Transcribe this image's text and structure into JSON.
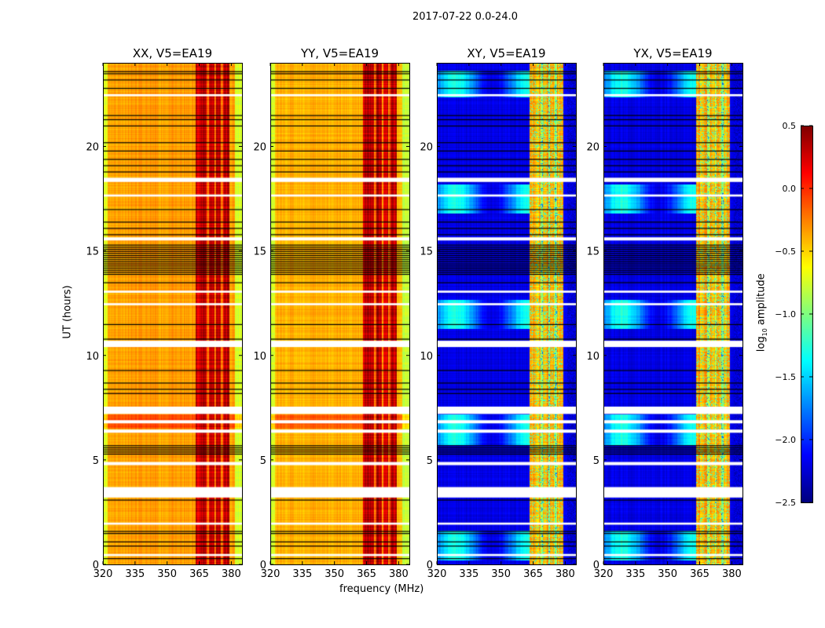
{
  "chart_data": {
    "type": "heatmap",
    "suptitle": "2017-07-22 0.0-24.0",
    "xlabel": "frequency (MHz)",
    "ylabel": "UT (hours)",
    "xlim": [
      320,
      385
    ],
    "ylim": [
      0,
      24
    ],
    "xticks": [
      "320",
      "335",
      "350",
      "365",
      "380"
    ],
    "xtick_values": [
      320,
      335,
      350,
      365,
      380
    ],
    "yticks": [
      "0",
      "5",
      "10",
      "15",
      "20"
    ],
    "ytick_values": [
      0,
      5,
      10,
      15,
      20
    ],
    "panels": [
      {
        "title": "XX, V5=EA19",
        "base": -0.35,
        "band": 0.3,
        "cross": false
      },
      {
        "title": "YY, V5=EA19",
        "base": -0.4,
        "band": 0.3,
        "cross": false
      },
      {
        "title": "XY, V5=EA19",
        "base": -2.2,
        "band": -0.4,
        "cross": true
      },
      {
        "title": "YX, V5=EA19",
        "base": -2.2,
        "band": -0.4,
        "cross": true
      }
    ],
    "band_mhz": [
      363,
      379
    ],
    "flagged_hours": [
      [
        3.2,
        3.7
      ],
      [
        7.2,
        7.55
      ],
      [
        10.4,
        10.7
      ],
      [
        6.3,
        6.45
      ],
      [
        6.75,
        6.9
      ],
      [
        4.75,
        4.9
      ],
      [
        13.0,
        13.1
      ],
      [
        12.4,
        12.5
      ],
      [
        17.6,
        17.7
      ],
      [
        18.3,
        18.5
      ],
      [
        15.5,
        15.65
      ],
      [
        22.4,
        22.5
      ],
      [
        1.9,
        2.0
      ],
      [
        0.4,
        0.5
      ]
    ],
    "black_hours": [
      0.3,
      0.9,
      1.1,
      1.5,
      1.6,
      3.1,
      5.3,
      5.4,
      5.5,
      5.6,
      5.7,
      8.2,
      8.4,
      8.7,
      9.3,
      10.8,
      11.5,
      13.5,
      13.9,
      14.0,
      14.1,
      14.2,
      14.3,
      14.4,
      14.5,
      14.6,
      14.7,
      14.8,
      14.9,
      15.0,
      15.1,
      15.2,
      15.3,
      15.8,
      16.1,
      16.4,
      17.0,
      18.8,
      19.1,
      19.4,
      19.8,
      20.2,
      21.0,
      21.3,
      21.5,
      22.8,
      23.2,
      23.5,
      23.6
    ],
    "colorbar": {
      "label": "log10 amplitude",
      "label_main": "log",
      "label_sub": "10",
      "label_rest": " amplitude",
      "range": [
        -2.5,
        0.5
      ],
      "ticks": [
        "0.5",
        "0.0",
        "−0.5",
        "−1.0",
        "−1.5",
        "−2.0",
        "−2.5"
      ],
      "tick_values": [
        0.5,
        0.0,
        -0.5,
        -1.0,
        -1.5,
        -2.0,
        -2.5
      ],
      "colormap": "jet"
    }
  }
}
